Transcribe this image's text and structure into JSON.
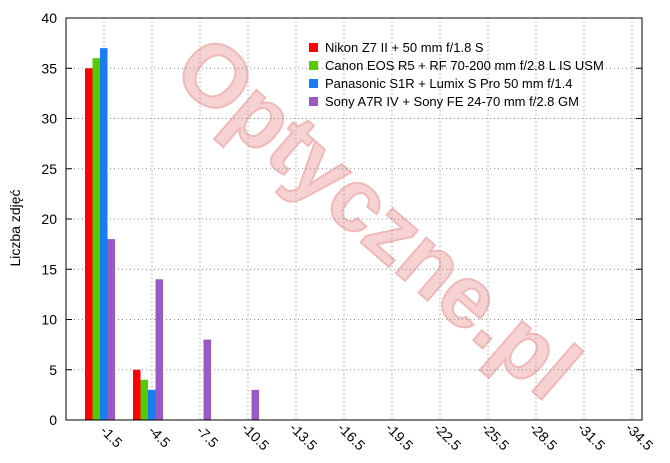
{
  "watermark": "Optyczne.pl",
  "chart_data": {
    "type": "bar",
    "title": "",
    "xlabel": "",
    "ylabel": "Liczba zdjęć",
    "ylim": [
      0,
      40
    ],
    "yticks": [
      0,
      5,
      10,
      15,
      20,
      25,
      30,
      35,
      40
    ],
    "grid": true,
    "legend_position": "top-right",
    "categories": [
      "-1.5",
      "-4.5",
      "-7.5",
      "-10.5",
      "-13.5",
      "-16.5",
      "-19.5",
      "-22.5",
      "-25.5",
      "-28.5",
      "-31.5",
      "-34.5"
    ],
    "series": [
      {
        "name": "Nikon Z7 II + 50 mm f/1.8 S",
        "color": "#ff0000",
        "values": [
          35,
          5,
          0,
          0,
          0,
          0,
          0,
          0,
          0,
          0,
          0,
          0
        ]
      },
      {
        "name": "Canon EOS R5 + RF 70-200 mm f/2.8 L IS USM",
        "color": "#55cc00",
        "values": [
          36,
          4,
          0,
          0,
          0,
          0,
          0,
          0,
          0,
          0,
          0,
          0
        ]
      },
      {
        "name": "Panasonic S1R + Lumix S Pro 50 mm f/1.4",
        "color": "#1a7cf5",
        "values": [
          37,
          3,
          0,
          0,
          0,
          0,
          0,
          0,
          0,
          0,
          0,
          0
        ]
      },
      {
        "name": "Sony A7R IV + Sony FE 24-70 mm f/2.8 GM",
        "color": "#9b59c6",
        "values": [
          18,
          14,
          8,
          3,
          0,
          0,
          0,
          0,
          0,
          0,
          0,
          0
        ]
      }
    ]
  }
}
